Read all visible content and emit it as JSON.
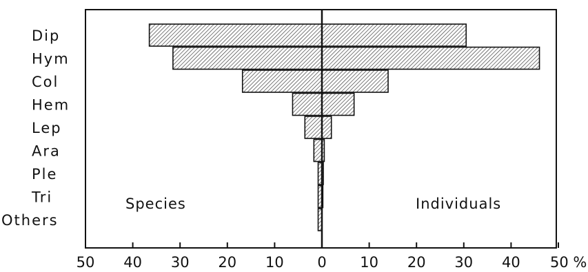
{
  "chart_data": {
    "type": "bar",
    "orientation": "horizontal",
    "layout": "back-to-back",
    "categories": [
      "Dip",
      "Hym",
      "Col",
      "Hem",
      "Lep",
      "Ara",
      "Ple",
      "Tri",
      "Others"
    ],
    "series": [
      {
        "name": "Species",
        "side": "left",
        "values": [
          36.5,
          31.5,
          16.8,
          6.2,
          3.6,
          1.7,
          0.8,
          0.8,
          0.8
        ]
      },
      {
        "name": "Individuals",
        "side": "right",
        "values": [
          30.5,
          46.0,
          14.0,
          6.8,
          2.0,
          0.5,
          0.3,
          0.2,
          0.0
        ]
      }
    ],
    "x_ticks": [
      "50",
      "40",
      "30",
      "20",
      "10",
      "0",
      "10",
      "20",
      "30",
      "40",
      "50 %"
    ],
    "xlim": [
      -50,
      50
    ],
    "fill": "diagonal-hatch",
    "colors": {
      "stroke": "#111111",
      "hatch": "#333333",
      "background": "#ffffff"
    }
  }
}
